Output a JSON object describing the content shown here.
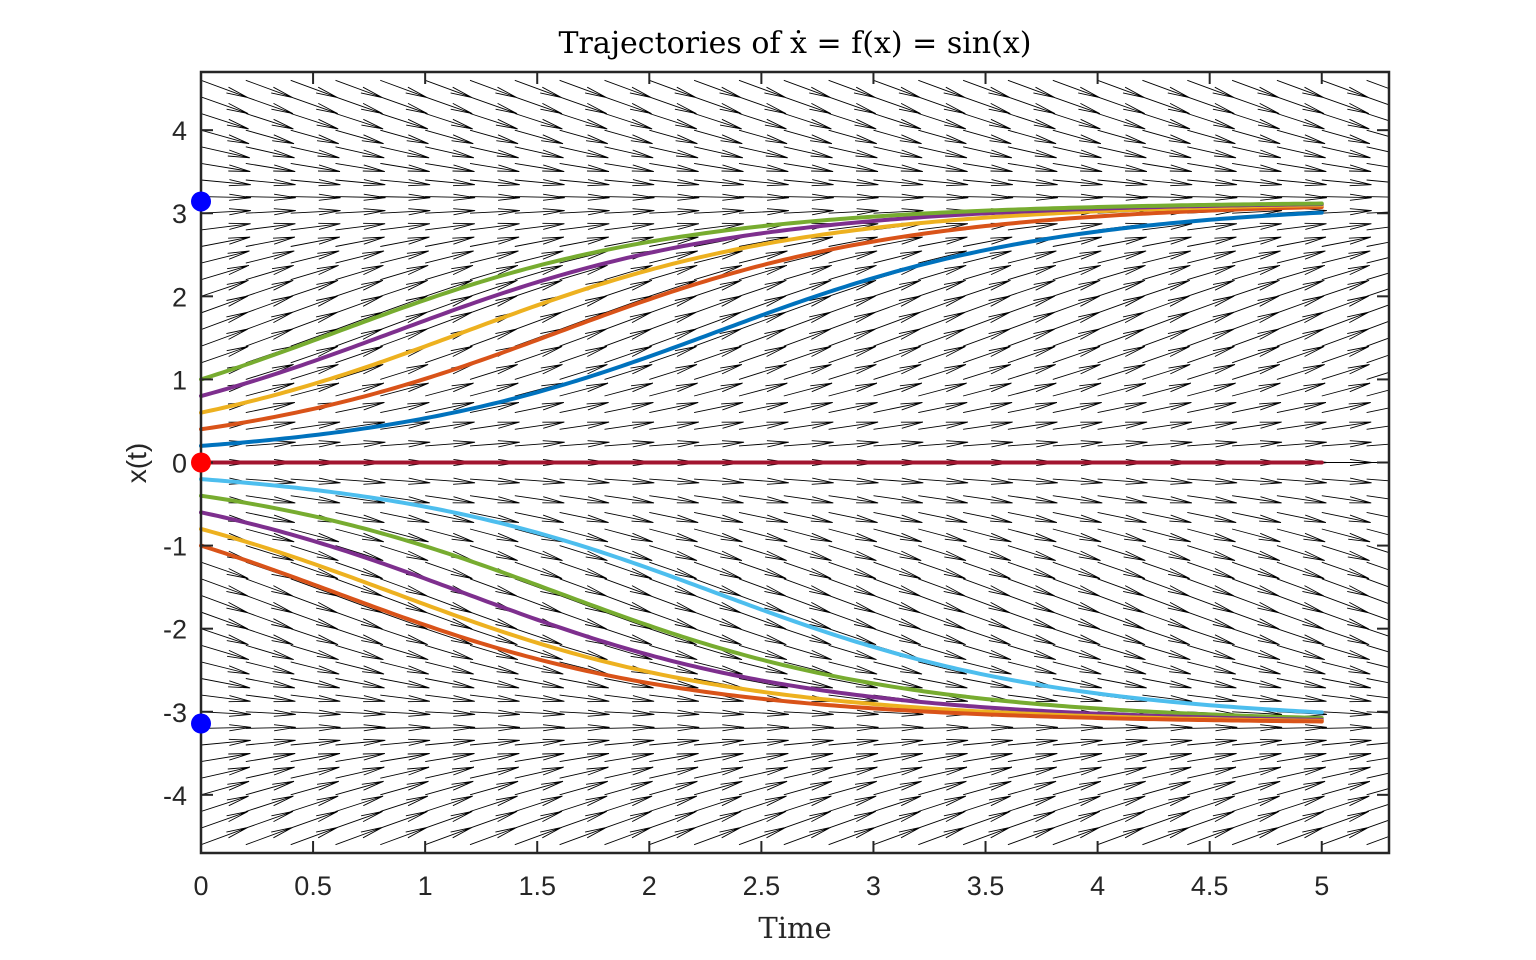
{
  "chart_data": {
    "type": "line",
    "title": "Trajectories of ẋ = f(x) = sin(x)",
    "xlabel": "Time",
    "ylabel": "x(t)",
    "xlim": [
      0,
      5.3
    ],
    "ylim": [
      -4.7,
      4.7
    ],
    "xticks": [
      0,
      0.5,
      1,
      1.5,
      2,
      2.5,
      3,
      3.5,
      4,
      4.5,
      5
    ],
    "xtick_labels": [
      "0",
      "0.5",
      "1",
      "1.5",
      "2",
      "2.5",
      "3",
      "3.5",
      "4",
      "4.5",
      "5"
    ],
    "yticks": [
      4,
      3,
      2,
      1,
      0,
      -1,
      -2,
      -3,
      -4
    ],
    "ytick_labels": [
      "4",
      "3",
      "2",
      "1",
      "0",
      "-1",
      "-2",
      "-3",
      "-4"
    ],
    "grid": false,
    "t_end": 5,
    "equation": "sin(x)",
    "quiver_field": {
      "t_step": 0.2,
      "x_step": 0.2,
      "color": "#000000"
    },
    "series": [
      {
        "x0": 0.2,
        "color": "#0072BD"
      },
      {
        "x0": 0.4,
        "color": "#D95319"
      },
      {
        "x0": 0.6,
        "color": "#EDB120"
      },
      {
        "x0": 0.8,
        "color": "#7E2F8E"
      },
      {
        "x0": 1.0,
        "color": "#77AC30"
      },
      {
        "x0": 0.0,
        "color": "#A2142F"
      },
      {
        "x0": -0.2,
        "color": "#4DBEEE"
      },
      {
        "x0": -0.4,
        "color": "#77AC30"
      },
      {
        "x0": -0.6,
        "color": "#7E2F8E"
      },
      {
        "x0": -0.8,
        "color": "#EDB120"
      },
      {
        "x0": -1.0,
        "color": "#D95319"
      }
    ],
    "equilibria": [
      {
        "t": 0,
        "x": 3.14159,
        "type": "stable",
        "color": "#0000FF"
      },
      {
        "t": 0,
        "x": 0,
        "type": "unstable",
        "color": "#FF0000"
      },
      {
        "t": 0,
        "x": -3.14159,
        "type": "stable",
        "color": "#0000FF"
      }
    ]
  }
}
